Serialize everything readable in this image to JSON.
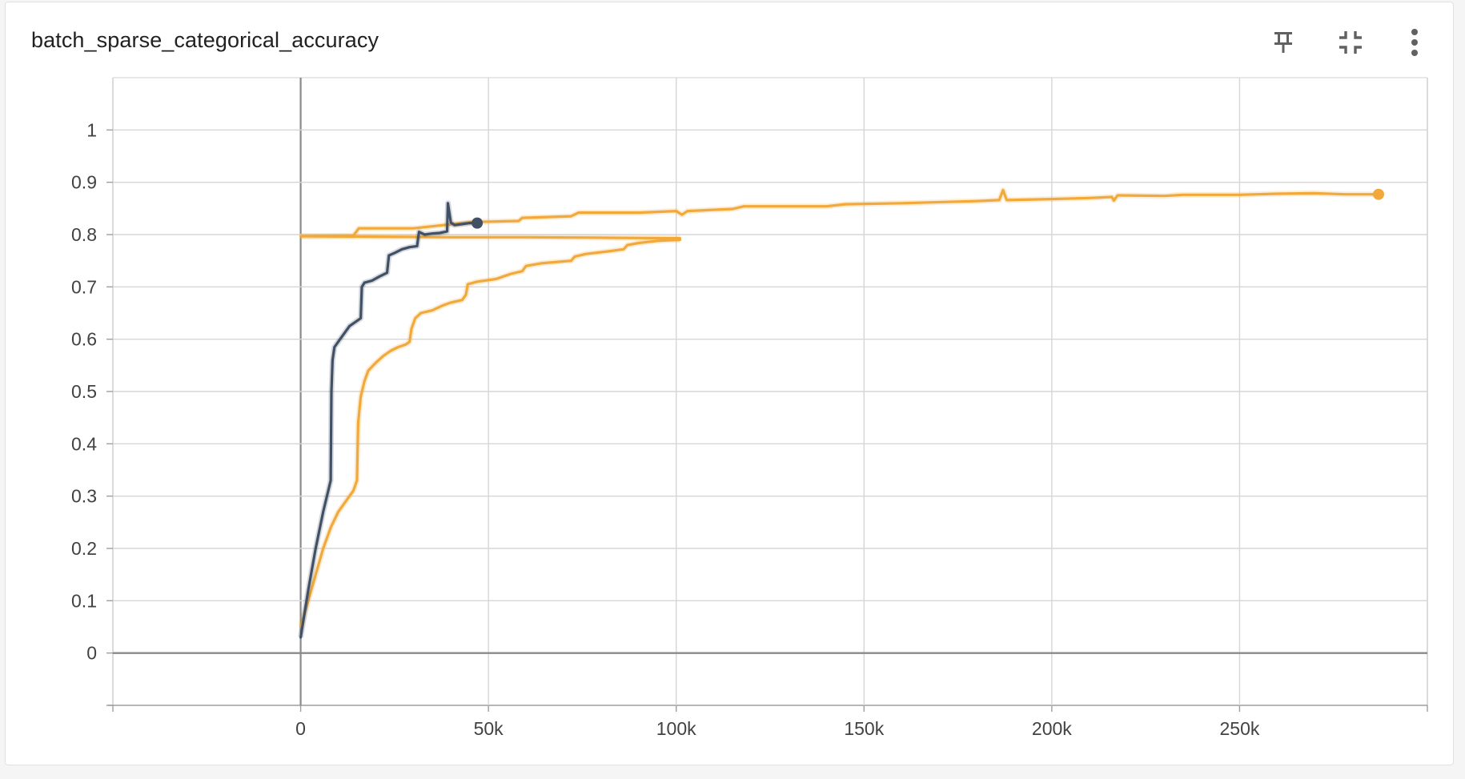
{
  "card": {
    "title": "batch_sparse_categorical_accuracy"
  },
  "toolbar": {
    "pin_icon": "pin-icon",
    "fit_icon": "fit-domain-icon",
    "menu_icon": "more-vert-icon"
  },
  "chart_data": {
    "type": "line",
    "title": "batch_sparse_categorical_accuracy",
    "xlabel": "",
    "ylabel": "",
    "xlim": [
      -50000,
      300000
    ],
    "ylim": [
      -0.1,
      1.1
    ],
    "grid": true,
    "x_ticks": [
      {
        "value": 0,
        "label": "0"
      },
      {
        "value": 50000,
        "label": "50k"
      },
      {
        "value": 100000,
        "label": "100k"
      },
      {
        "value": 150000,
        "label": "150k"
      },
      {
        "value": 200000,
        "label": "200k"
      },
      {
        "value": 250000,
        "label": "250k"
      }
    ],
    "y_ticks": [
      {
        "value": 0,
        "label": "0"
      },
      {
        "value": 0.1,
        "label": "0.1"
      },
      {
        "value": 0.2,
        "label": "0.2"
      },
      {
        "value": 0.3,
        "label": "0.3"
      },
      {
        "value": 0.4,
        "label": "0.4"
      },
      {
        "value": 0.5,
        "label": "0.5"
      },
      {
        "value": 0.6,
        "label": "0.6"
      },
      {
        "value": 0.7,
        "label": "0.7"
      },
      {
        "value": 0.8,
        "label": "0.8"
      },
      {
        "value": 0.9,
        "label": "0.9"
      },
      {
        "value": 1,
        "label": "1"
      }
    ],
    "series": [
      {
        "color": "#425066",
        "end_marker": true,
        "points": [
          [
            0,
            0.03
          ],
          [
            2000,
            0.12
          ],
          [
            4000,
            0.2
          ],
          [
            6000,
            0.27
          ],
          [
            8000,
            0.33
          ],
          [
            8200,
            0.5
          ],
          [
            8500,
            0.56
          ],
          [
            9000,
            0.585
          ],
          [
            10500,
            0.6
          ],
          [
            13000,
            0.625
          ],
          [
            16000,
            0.64
          ],
          [
            16300,
            0.7
          ],
          [
            17000,
            0.708
          ],
          [
            19000,
            0.712
          ],
          [
            21000,
            0.72
          ],
          [
            23000,
            0.727
          ],
          [
            23500,
            0.76
          ],
          [
            25000,
            0.765
          ],
          [
            27000,
            0.772
          ],
          [
            29000,
            0.776
          ],
          [
            31000,
            0.778
          ],
          [
            31500,
            0.805
          ],
          [
            33000,
            0.8
          ],
          [
            35000,
            0.802
          ],
          [
            37000,
            0.803
          ],
          [
            39000,
            0.806
          ],
          [
            39200,
            0.86
          ],
          [
            40000,
            0.823
          ],
          [
            41000,
            0.818
          ],
          [
            43000,
            0.82
          ],
          [
            45000,
            0.822
          ],
          [
            47000,
            0.822
          ]
        ]
      },
      {
        "color": "#f2a93b",
        "end_marker": false,
        "points": [
          [
            0,
            0.05
          ],
          [
            2000,
            0.1
          ],
          [
            4000,
            0.15
          ],
          [
            6000,
            0.2
          ],
          [
            8000,
            0.24
          ],
          [
            10000,
            0.27
          ],
          [
            12000,
            0.29
          ],
          [
            14000,
            0.31
          ],
          [
            15000,
            0.33
          ],
          [
            15300,
            0.44
          ],
          [
            16000,
            0.49
          ],
          [
            17000,
            0.52
          ],
          [
            18000,
            0.54
          ],
          [
            20000,
            0.555
          ],
          [
            22000,
            0.568
          ],
          [
            24000,
            0.578
          ],
          [
            26000,
            0.585
          ],
          [
            28000,
            0.59
          ],
          [
            29000,
            0.595
          ],
          [
            29500,
            0.62
          ],
          [
            30500,
            0.64
          ],
          [
            32000,
            0.65
          ],
          [
            35000,
            0.655
          ],
          [
            38000,
            0.665
          ],
          [
            40000,
            0.67
          ],
          [
            43000,
            0.675
          ],
          [
            44000,
            0.685
          ],
          [
            44500,
            0.705
          ],
          [
            47000,
            0.71
          ],
          [
            52000,
            0.715
          ],
          [
            56000,
            0.725
          ],
          [
            59000,
            0.73
          ],
          [
            60000,
            0.74
          ],
          [
            64000,
            0.745
          ],
          [
            72000,
            0.75
          ],
          [
            73000,
            0.758
          ],
          [
            76000,
            0.763
          ],
          [
            82000,
            0.768
          ],
          [
            86000,
            0.772
          ],
          [
            87000,
            0.78
          ],
          [
            90000,
            0.784
          ],
          [
            95000,
            0.788
          ],
          [
            101000,
            0.79
          ]
        ]
      },
      {
        "color": "#f2a93b",
        "end_marker": false,
        "points": [
          [
            0,
            0.797
          ],
          [
            20000,
            0.796
          ],
          [
            40000,
            0.795
          ],
          [
            60000,
            0.795
          ],
          [
            80000,
            0.794
          ],
          [
            101000,
            0.793
          ]
        ]
      },
      {
        "color": "#f2a93b",
        "end_marker": true,
        "points": [
          [
            0,
            0.797
          ],
          [
            14000,
            0.798
          ],
          [
            15500,
            0.812
          ],
          [
            30000,
            0.812
          ],
          [
            38000,
            0.818
          ],
          [
            46000,
            0.824
          ],
          [
            58000,
            0.826
          ],
          [
            59000,
            0.832
          ],
          [
            72000,
            0.835
          ],
          [
            74000,
            0.842
          ],
          [
            90000,
            0.842
          ],
          [
            100000,
            0.845
          ],
          [
            101500,
            0.838
          ],
          [
            103000,
            0.845
          ],
          [
            115000,
            0.849
          ],
          [
            118000,
            0.854
          ],
          [
            140000,
            0.854
          ],
          [
            145000,
            0.858
          ],
          [
            160000,
            0.86
          ],
          [
            180000,
            0.864
          ],
          [
            186000,
            0.866
          ],
          [
            187000,
            0.885
          ],
          [
            188000,
            0.866
          ],
          [
            200000,
            0.868
          ],
          [
            210000,
            0.87
          ],
          [
            216000,
            0.872
          ],
          [
            216500,
            0.865
          ],
          [
            217500,
            0.875
          ],
          [
            230000,
            0.874
          ],
          [
            235000,
            0.876
          ],
          [
            250000,
            0.876
          ],
          [
            260000,
            0.878
          ],
          [
            270000,
            0.879
          ],
          [
            278000,
            0.877
          ],
          [
            287000,
            0.877
          ]
        ]
      }
    ]
  }
}
